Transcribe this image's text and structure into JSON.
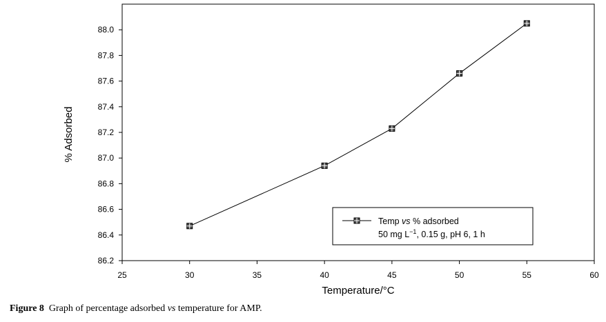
{
  "chart_data": {
    "type": "line",
    "x": [
      30,
      40,
      45,
      50,
      55
    ],
    "series": [
      {
        "name_parts": {
          "pre": "Temp ",
          "em": "vs",
          "post": " % adsorbed"
        },
        "values": [
          86.47,
          86.94,
          87.23,
          87.66,
          88.05
        ]
      }
    ],
    "legend_subtext": {
      "pre": "50 mg L",
      "sup": "−1",
      "post": ", 0.15 g, pH 6, 1 h"
    },
    "xlabel": "Temperature/°C",
    "ylabel": "% Adsorbed",
    "xlim": [
      25,
      60
    ],
    "ylim": [
      86.2,
      88.2
    ],
    "xticks": [
      "25",
      "30",
      "35",
      "40",
      "45",
      "50",
      "55",
      "60"
    ],
    "yticks": [
      "86.2",
      "86.4",
      "86.6",
      "86.8",
      "87.0",
      "87.2",
      "87.4",
      "87.6",
      "87.8",
      "88.0"
    ],
    "grid": false,
    "legend_position": "bottom-right",
    "colors": {
      "line": "#000000",
      "marker": "#4d4d4d"
    }
  },
  "caption": {
    "label": "Figure 8",
    "pre": "Graph of percentage adsorbed ",
    "em": "vs",
    "post": " temperature for AMP."
  }
}
